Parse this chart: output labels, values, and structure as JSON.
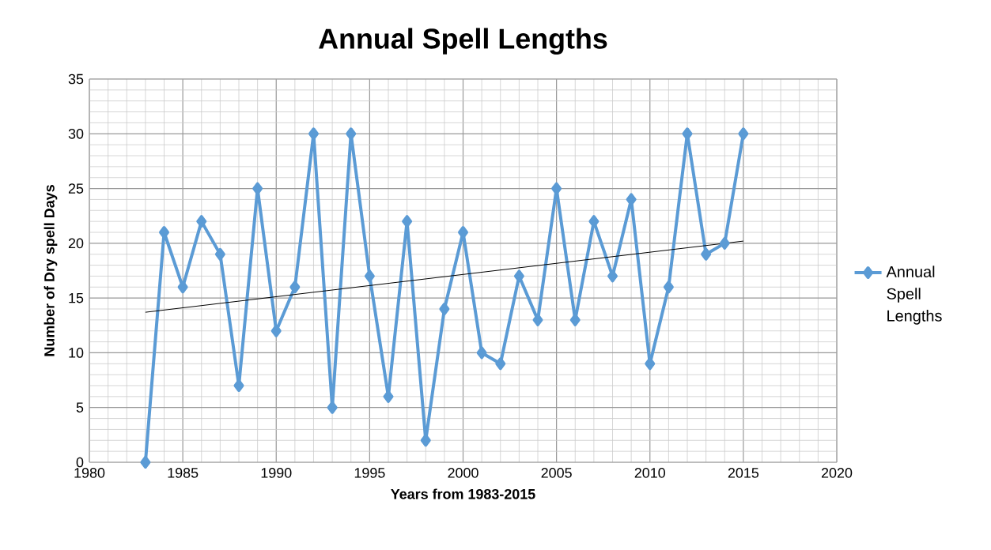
{
  "chart_data": {
    "type": "line",
    "title": "Annual Spell Lengths",
    "xlabel": "Years from 1983-2015",
    "ylabel": "Number of Dry spell Days",
    "x": [
      1983,
      1984,
      1985,
      1986,
      1987,
      1988,
      1989,
      1990,
      1991,
      1992,
      1993,
      1994,
      1995,
      1996,
      1997,
      1998,
      1999,
      2000,
      2001,
      2002,
      2003,
      2004,
      2005,
      2006,
      2007,
      2008,
      2009,
      2010,
      2011,
      2012,
      2013,
      2014,
      2015
    ],
    "series": [
      {
        "name": "Annual Spell Lengths",
        "color": "#5b9bd5",
        "marker": "diamond",
        "values": [
          0,
          21,
          16,
          22,
          19,
          7,
          25,
          12,
          16,
          30,
          5,
          30,
          17,
          6,
          22,
          2,
          14,
          21,
          10,
          9,
          17,
          13,
          25,
          13,
          22,
          17,
          24,
          9,
          16,
          30,
          19,
          20,
          30
        ]
      },
      {
        "type": "line",
        "color": "#000000",
        "marker": "none",
        "x": [
          1983,
          2015
        ],
        "values": [
          13.7,
          20.2
        ]
      }
    ],
    "xlim": [
      1980,
      2020
    ],
    "ylim": [
      0,
      35
    ],
    "xticks": [
      1980,
      1985,
      1990,
      1995,
      2000,
      2005,
      2010,
      2015,
      2020
    ],
    "yticks": [
      0,
      5,
      10,
      15,
      20,
      25,
      30,
      35
    ],
    "grid": true,
    "legend": "right"
  }
}
